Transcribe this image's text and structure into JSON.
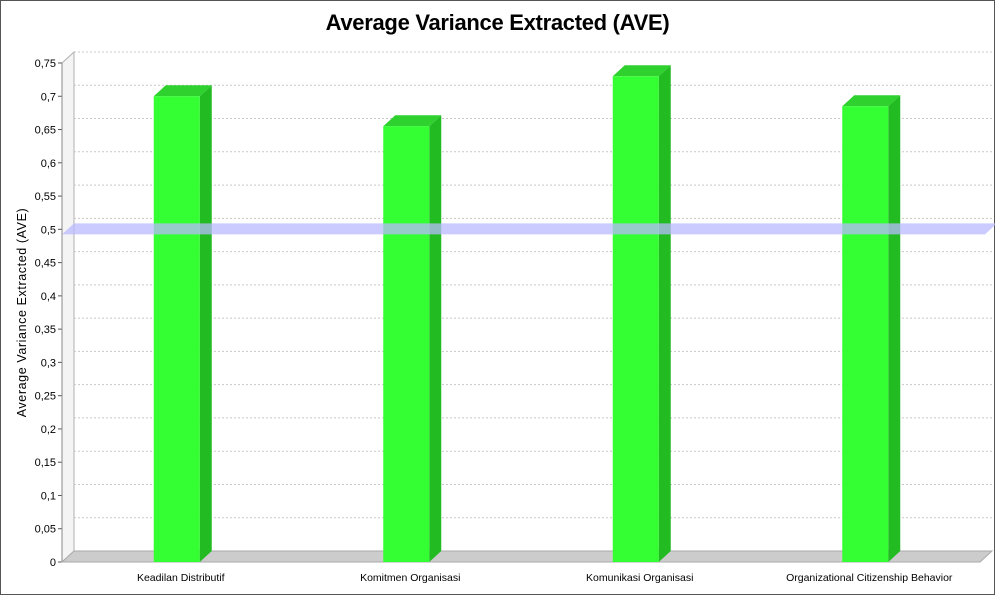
{
  "chart_data": {
    "type": "bar",
    "title": "Average Variance Extracted (AVE)",
    "xlabel": "",
    "ylabel": "Average Variance Extracted (AVE)",
    "categories": [
      "Keadilan Distributif",
      "Komitmen Organisasi",
      "Komunikasi Organisasi",
      "Organizational Citizenship Behavior"
    ],
    "values": [
      0.7,
      0.655,
      0.73,
      0.685
    ],
    "ylim": [
      0,
      0.75
    ],
    "yticks": [
      "0",
      "0,05",
      "0,1",
      "0,15",
      "0,2",
      "0,25",
      "0,3",
      "0,35",
      "0,4",
      "0,45",
      "0,5",
      "0,55",
      "0,6",
      "0,65",
      "0,7",
      "0,75"
    ],
    "threshold": 0.5,
    "grid": true,
    "colors": {
      "bar_front": "#33ff33",
      "bar_side": "#22bb22",
      "bar_top": "#2ed12e",
      "threshold": "#b9b9ff",
      "floor": "#cccccc",
      "gridline": "#c8c8c8"
    }
  }
}
